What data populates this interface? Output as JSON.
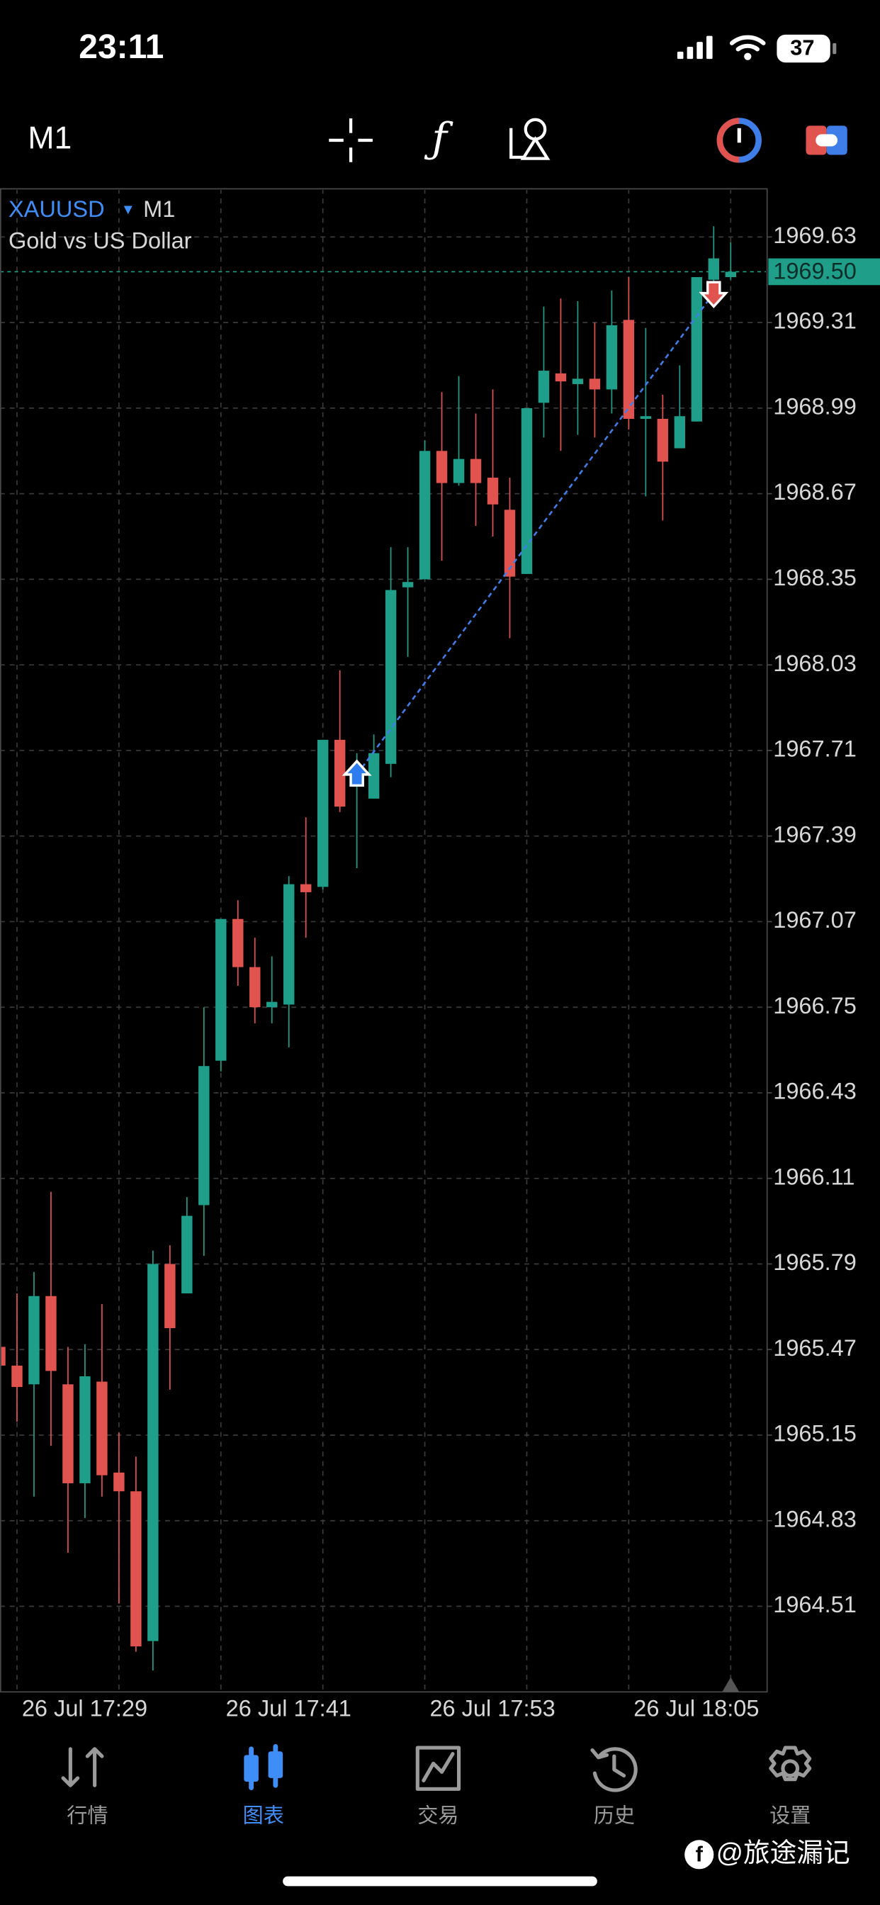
{
  "status_bar": {
    "time": "23:11",
    "battery": "37"
  },
  "toolbar": {
    "timeframe": "M1"
  },
  "chart_data": {
    "type": "candlestick",
    "symbol": "XAUUSD",
    "timeframe": "M1",
    "description": "Gold vs US Dollar",
    "categories": [
      null,
      "26 Jul 17:29",
      null,
      null,
      null,
      null,
      null,
      null,
      null,
      null,
      null,
      null,
      null,
      "26 Jul 17:41",
      null,
      null,
      null,
      null,
      null,
      null,
      null,
      null,
      null,
      null,
      null,
      "26 Jul 17:53",
      null,
      null,
      null,
      null,
      null,
      null,
      null,
      null,
      null,
      null,
      null,
      "26 Jul 18:05",
      null,
      null,
      null,
      null,
      null,
      null
    ],
    "open": [
      1965.48,
      1965.41,
      1965.34,
      1965.67,
      1965.34,
      1964.97,
      1965.35,
      1965.01,
      1964.94,
      1964.38,
      1965.79,
      1965.68,
      1966.01,
      1966.55,
      1967.08,
      1966.9,
      1966.75,
      1966.76,
      1967.21,
      1967.2,
      1967.75,
      1967.59,
      1967.53,
      1967.66,
      1968.32,
      1968.35,
      1968.83,
      1968.71,
      1968.8,
      1968.73,
      1968.61,
      1968.37,
      1969.01,
      1969.12,
      1969.08,
      1969.1,
      1969.06,
      1969.32,
      1968.95,
      1968.95,
      1968.84,
      1968.94,
      1969.47,
      1969.48
    ],
    "high": [
      1965.54,
      1965.68,
      1965.76,
      1966.06,
      1965.48,
      1965.49,
      1965.64,
      1965.16,
      1965.07,
      1965.84,
      1965.86,
      1966.04,
      1966.75,
      1967.08,
      1967.15,
      1967.01,
      1966.94,
      1967.24,
      1967.46,
      1967.75,
      1968.01,
      1967.7,
      1967.77,
      1968.47,
      1968.47,
      1968.87,
      1969.05,
      1969.11,
      1968.97,
      1969.06,
      1968.73,
      1968.99,
      1969.37,
      1969.4,
      1969.39,
      1969.31,
      1969.43,
      1969.48,
      1969.29,
      1969.04,
      1969.15,
      1969.48,
      1969.67,
      1969.61
    ],
    "low": [
      1965.34,
      1965.2,
      1964.92,
      1965.11,
      1964.71,
      1964.84,
      1964.92,
      1964.52,
      1964.34,
      1964.27,
      1965.32,
      1965.68,
      1965.82,
      1966.51,
      1966.83,
      1966.69,
      1966.69,
      1966.6,
      1967.01,
      1967.19,
      1967.48,
      1967.27,
      1967.53,
      1967.61,
      1968.06,
      1968.35,
      1968.42,
      1968.7,
      1968.55,
      1968.51,
      1968.13,
      1968.37,
      1968.88,
      1968.83,
      1968.89,
      1968.88,
      1968.97,
      1968.91,
      1968.66,
      1968.57,
      1968.84,
      1968.94,
      1969.38,
      1969.47
    ],
    "close": [
      1965.41,
      1965.33,
      1965.67,
      1965.39,
      1964.97,
      1965.37,
      1965.0,
      1964.94,
      1964.36,
      1965.79,
      1965.55,
      1965.97,
      1966.53,
      1967.08,
      1966.9,
      1966.75,
      1966.77,
      1967.21,
      1967.18,
      1967.75,
      1967.5,
      1967.61,
      1967.7,
      1968.31,
      1968.34,
      1968.83,
      1968.71,
      1968.8,
      1968.71,
      1968.63,
      1968.36,
      1968.99,
      1969.13,
      1969.09,
      1969.1,
      1969.06,
      1969.3,
      1968.95,
      1968.96,
      1968.79,
      1968.96,
      1969.48,
      1969.55,
      1969.5
    ],
    "up_color": "#1f9e8a",
    "down_color": "#e0534f",
    "ylim": [
      1964.19,
      1969.81
    ],
    "yticks": [
      1969.63,
      1969.31,
      1968.99,
      1968.67,
      1968.35,
      1968.03,
      1967.71,
      1967.39,
      1967.07,
      1966.75,
      1966.43,
      1966.11,
      1965.79,
      1965.47,
      1965.15,
      1964.83,
      1964.51
    ],
    "grid": true,
    "current_price": {
      "value": 1969.5,
      "label": "1969.50"
    },
    "buy": {
      "index": 21,
      "price": 1967.62
    },
    "sell": {
      "index": 42,
      "price": 1969.42
    }
  },
  "tab_bar": {
    "tabs": [
      {
        "label": "行情"
      },
      {
        "label": "图表"
      },
      {
        "label": "交易"
      },
      {
        "label": "历史"
      },
      {
        "label": "设置"
      }
    ],
    "active": 1
  },
  "watermark": "@旅途漏记"
}
